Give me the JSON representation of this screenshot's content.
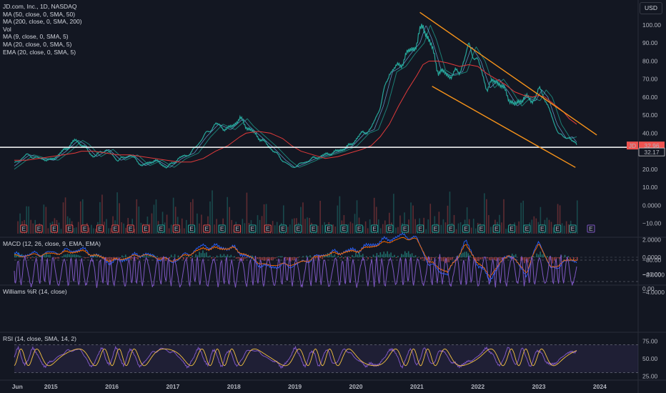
{
  "header": {
    "symbol_title": "JD.com, Inc., 1D, NASDAQ",
    "currency_button": "USD",
    "indicators": [
      "MA (50, close, 0, SMA, 50)",
      "MA (200, close, 0, SMA, 200)",
      "Vol",
      "MA (9, close, 0, SMA, 5)",
      "MA (20, close, 0, SMA, 5)",
      "EMA (20, close, 0, SMA, 5)"
    ]
  },
  "colors": {
    "background": "#131722",
    "price": "#26a69a",
    "price_down": "#ef5350",
    "ma200": "#e03a3a",
    "channel": "#f7931a",
    "horizontal": "#ffffff",
    "macd": "#2962ff",
    "signal": "#ff6d00",
    "williams": "#7e57c2",
    "rsi": "#7e57c2",
    "rsi_ma": "#f5c242"
  },
  "chart_data": [
    {
      "type": "line",
      "pane": "price",
      "title": "JD.com, Inc., 1D, NASDAQ",
      "ylim": [
        -15,
        110
      ],
      "y_ticks": [
        "100.00",
        "90.00",
        "80.00",
        "70.00",
        "60.00",
        "50.00",
        "40.00",
        "30.00",
        "20.00",
        "10.00",
        "0.0000",
        "−10.00"
      ],
      "x_ticks": [
        "Jun",
        "2015",
        "2016",
        "2017",
        "2018",
        "2019",
        "2020",
        "2021",
        "2022",
        "2023",
        "2024"
      ],
      "x": [
        2014.4,
        2014.6,
        2014.8,
        2015.0,
        2015.2,
        2015.4,
        2015.5,
        2015.7,
        2015.9,
        2016.1,
        2016.3,
        2016.5,
        2016.7,
        2016.9,
        2017.1,
        2017.3,
        2017.5,
        2017.7,
        2017.9,
        2018.1,
        2018.2,
        2018.4,
        2018.6,
        2018.8,
        2018.95,
        2019.1,
        2019.3,
        2019.5,
        2019.7,
        2019.9,
        2020.1,
        2020.25,
        2020.4,
        2020.55,
        2020.7,
        2020.85,
        2021.0,
        2021.1,
        2021.2,
        2021.35,
        2021.5,
        2021.7,
        2021.85,
        2022.0,
        2022.15,
        2022.3,
        2022.45,
        2022.6,
        2022.75,
        2022.9,
        2023.0,
        2023.1,
        2023.25,
        2023.4,
        2023.5,
        2023.62
      ],
      "series": [
        {
          "name": "JD",
          "values": [
            23,
            28,
            26,
            25,
            30,
            36,
            34,
            27,
            31,
            25,
            28,
            22,
            25,
            21,
            26,
            29,
            38,
            45,
            42,
            48,
            44,
            38,
            32,
            25,
            21,
            23,
            26,
            28,
            30,
            33,
            40,
            42,
            55,
            74,
            77,
            84,
            90,
            100,
            92,
            75,
            72,
            74,
            88,
            80,
            65,
            70,
            63,
            55,
            60,
            58,
            64,
            60,
            45,
            37,
            38,
            33
          ]
        },
        {
          "name": "MA (200, close, 0, SMA, 200)",
          "values": [
            25,
            25,
            26,
            27,
            28,
            29,
            30,
            30,
            29,
            28,
            28,
            27,
            26,
            25,
            24,
            24,
            26,
            30,
            33,
            38,
            40,
            41,
            40,
            37,
            33,
            30,
            28,
            26,
            27,
            29,
            31,
            33,
            38,
            45,
            55,
            64,
            72,
            78,
            80,
            80,
            79,
            77,
            78,
            77,
            73,
            70,
            67,
            63,
            61,
            60,
            61,
            60,
            56,
            52,
            48,
            45
          ]
        }
      ],
      "horizontal_line": 32.17,
      "price_labels": [
        {
          "name": "JD",
          "value": "32.96"
        },
        {
          "value": "32.17"
        }
      ],
      "channel": {
        "upper": [
          [
            2021.05,
            107
          ],
          [
            2023.95,
            39
          ]
        ],
        "lower": [
          [
            2021.25,
            66
          ],
          [
            2023.6,
            21
          ]
        ]
      }
    },
    {
      "type": "bar",
      "pane": "volume",
      "title": "Vol",
      "earnings_markers": [
        "E",
        "E",
        "E",
        "E",
        "E",
        "E",
        "E",
        "E",
        "E",
        "E",
        "E",
        "E",
        "E",
        "E",
        "E",
        "E",
        "E",
        "E",
        "E",
        "E",
        "E",
        "E",
        "E",
        "E",
        "E",
        "E",
        "E",
        "E",
        "E",
        "E",
        "E",
        "E",
        "E",
        "E",
        "E",
        "E",
        "E"
      ]
    },
    {
      "type": "line",
      "pane": "macd",
      "title": "MACD (12, 26, close, 9, EMA, EMA)",
      "y_ticks": [
        "2.0000",
        "0.0000",
        "−2.0000",
        "−4.0000"
      ],
      "ylim": [
        -5,
        3
      ],
      "x": [
        2014.4,
        2015.0,
        2015.5,
        2016.0,
        2016.5,
        2017.0,
        2017.5,
        2018.0,
        2018.5,
        2019.0,
        2019.5,
        2020.0,
        2020.5,
        2020.8,
        2021.0,
        2021.2,
        2021.5,
        2021.8,
        2022.0,
        2022.2,
        2022.5,
        2022.8,
        2023.0,
        2023.2,
        2023.4,
        2023.62
      ],
      "series": [
        {
          "name": "MACD",
          "values": [
            0.2,
            0.5,
            0.9,
            -0.6,
            0.4,
            -0.5,
            1.3,
            1.0,
            -1.1,
            -0.9,
            0.4,
            0.8,
            2.0,
            2.5,
            2.1,
            -0.8,
            -2.0,
            1.8,
            -0.8,
            -2.5,
            0.5,
            -2.0,
            2.0,
            -1.5,
            -0.6,
            -0.3
          ]
        },
        {
          "name": "Signal",
          "values": [
            0.1,
            0.4,
            0.7,
            -0.4,
            0.3,
            -0.4,
            1.0,
            1.0,
            -0.9,
            -0.8,
            0.3,
            0.7,
            1.7,
            2.2,
            2.0,
            -0.5,
            -1.7,
            1.4,
            -0.6,
            -2.1,
            0.4,
            -1.7,
            1.7,
            -1.3,
            -0.5,
            -0.2
          ]
        }
      ]
    },
    {
      "type": "line",
      "pane": "williams",
      "title": "Williams %R (14, close)",
      "y_ticks": [
        "0.00",
        "−40.00",
        "−80.00"
      ],
      "ylim": [
        -100,
        0
      ],
      "upper_band": -20,
      "lower_band": -80
    },
    {
      "type": "line",
      "pane": "rsi",
      "title": "RSI (14, close, SMA, 14, 2)",
      "y_ticks": [
        "75.00",
        "50.00",
        "25.00"
      ],
      "ylim": [
        20,
        80
      ],
      "upper_band": 70,
      "lower_band": 30
    }
  ]
}
